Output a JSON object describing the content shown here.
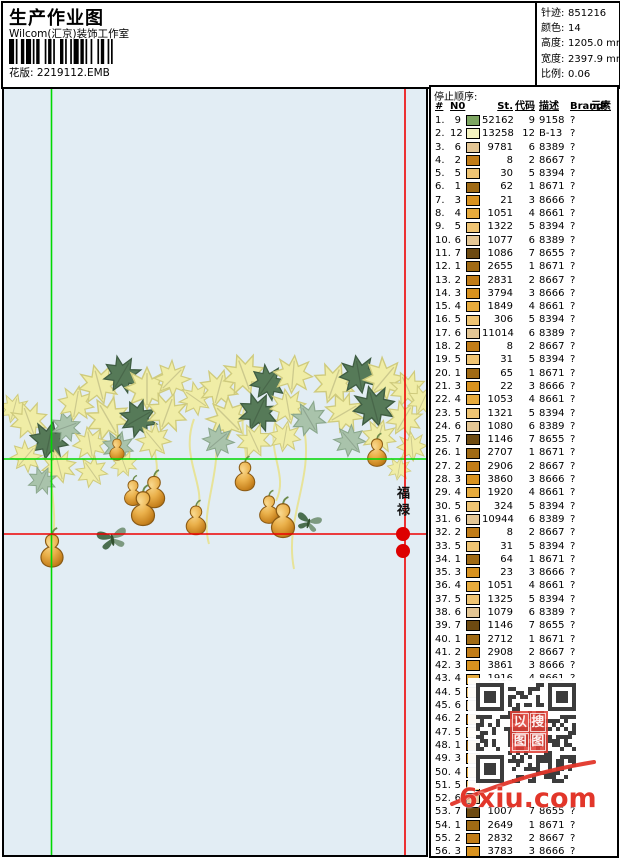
{
  "header": {
    "title": "生产作业图",
    "studio": "Wilcom(汇京)装饰工作室",
    "pattern_label": "花版:",
    "pattern_value": "2219112.EMB",
    "stats": [
      {
        "label": "针迹:",
        "value": "851216"
      },
      {
        "label": "颜色:",
        "value": "14"
      },
      {
        "label": "高度:",
        "value": "1205.0 mm"
      },
      {
        "label": "宽度:",
        "value": "2397.9 mm"
      },
      {
        "label": "比例:",
        "value": "0.06"
      }
    ]
  },
  "design": {
    "motto": "福禄"
  },
  "watermark": {
    "site": "6xiu.com",
    "stamp_chars": [
      "以",
      "搜",
      "图",
      "图"
    ]
  },
  "colors": {
    "canvas_bg": "#e2edf4",
    "crosshair_green": "#00d800",
    "crosshair_red": "#ee0000",
    "marker_red": "#dd0000",
    "watermark_red": "#e2362a",
    "leaf_pale": "#f0eda6",
    "leaf_dark": "#567a58",
    "leaf_sage": "#a9c3ab",
    "gourd_mid": "#e6a53c"
  },
  "thread_colors": {
    "1": "#a06a14",
    "2": "#c17c17",
    "3": "#d8921f",
    "4": "#e7ab3d",
    "5": "#efc473",
    "6": "#e4c694",
    "7": "#6d4a11",
    "9": "#7da561",
    "12": "#f5f3c0"
  },
  "table": {
    "title": "停止顺序:",
    "columns": [
      "#",
      "N0",
      "St.",
      "代码",
      "描述",
      "Brand",
      "元素"
    ],
    "rows": [
      {
        "n": "1.",
        "no": "9",
        "st": "52162",
        "code": "9",
        "desc": "9158",
        "brand": "?"
      },
      {
        "n": "2.",
        "no": "12",
        "st": "13258",
        "code": "12",
        "desc": "B-13",
        "brand": "?"
      },
      {
        "n": "3.",
        "no": "6",
        "st": "9781",
        "code": "6",
        "desc": "8389",
        "brand": "?"
      },
      {
        "n": "4.",
        "no": "2",
        "st": "8",
        "code": "2",
        "desc": "8667",
        "brand": "?"
      },
      {
        "n": "5.",
        "no": "5",
        "st": "30",
        "code": "5",
        "desc": "8394",
        "brand": "?"
      },
      {
        "n": "6.",
        "no": "1",
        "st": "62",
        "code": "1",
        "desc": "8671",
        "brand": "?"
      },
      {
        "n": "7.",
        "no": "3",
        "st": "21",
        "code": "3",
        "desc": "8666",
        "brand": "?"
      },
      {
        "n": "8.",
        "no": "4",
        "st": "1051",
        "code": "4",
        "desc": "8661",
        "brand": "?"
      },
      {
        "n": "9.",
        "no": "5",
        "st": "1322",
        "code": "5",
        "desc": "8394",
        "brand": "?"
      },
      {
        "n": "10.",
        "no": "6",
        "st": "1077",
        "code": "6",
        "desc": "8389",
        "brand": "?"
      },
      {
        "n": "11.",
        "no": "7",
        "st": "1086",
        "code": "7",
        "desc": "8655",
        "brand": "?"
      },
      {
        "n": "12.",
        "no": "1",
        "st": "2655",
        "code": "1",
        "desc": "8671",
        "brand": "?"
      },
      {
        "n": "13.",
        "no": "2",
        "st": "2831",
        "code": "2",
        "desc": "8667",
        "brand": "?"
      },
      {
        "n": "14.",
        "no": "3",
        "st": "3794",
        "code": "3",
        "desc": "8666",
        "brand": "?"
      },
      {
        "n": "15.",
        "no": "4",
        "st": "1849",
        "code": "4",
        "desc": "8661",
        "brand": "?"
      },
      {
        "n": "16.",
        "no": "5",
        "st": "306",
        "code": "5",
        "desc": "8394",
        "brand": "?"
      },
      {
        "n": "17.",
        "no": "6",
        "st": "11014",
        "code": "6",
        "desc": "8389",
        "brand": "?"
      },
      {
        "n": "18.",
        "no": "2",
        "st": "8",
        "code": "2",
        "desc": "8667",
        "brand": "?"
      },
      {
        "n": "19.",
        "no": "5",
        "st": "31",
        "code": "5",
        "desc": "8394",
        "brand": "?"
      },
      {
        "n": "20.",
        "no": "1",
        "st": "65",
        "code": "1",
        "desc": "8671",
        "brand": "?"
      },
      {
        "n": "21.",
        "no": "3",
        "st": "22",
        "code": "3",
        "desc": "8666",
        "brand": "?"
      },
      {
        "n": "22.",
        "no": "4",
        "st": "1053",
        "code": "4",
        "desc": "8661",
        "brand": "?"
      },
      {
        "n": "23.",
        "no": "5",
        "st": "1321",
        "code": "5",
        "desc": "8394",
        "brand": "?"
      },
      {
        "n": "24.",
        "no": "6",
        "st": "1080",
        "code": "6",
        "desc": "8389",
        "brand": "?"
      },
      {
        "n": "25.",
        "no": "7",
        "st": "1146",
        "code": "7",
        "desc": "8655",
        "brand": "?"
      },
      {
        "n": "26.",
        "no": "1",
        "st": "2707",
        "code": "1",
        "desc": "8671",
        "brand": "?"
      },
      {
        "n": "27.",
        "no": "2",
        "st": "2906",
        "code": "2",
        "desc": "8667",
        "brand": "?"
      },
      {
        "n": "28.",
        "no": "3",
        "st": "3860",
        "code": "3",
        "desc": "8666",
        "brand": "?"
      },
      {
        "n": "29.",
        "no": "4",
        "st": "1920",
        "code": "4",
        "desc": "8661",
        "brand": "?"
      },
      {
        "n": "30.",
        "no": "5",
        "st": "324",
        "code": "5",
        "desc": "8394",
        "brand": "?"
      },
      {
        "n": "31.",
        "no": "6",
        "st": "10944",
        "code": "6",
        "desc": "8389",
        "brand": "?"
      },
      {
        "n": "32.",
        "no": "2",
        "st": "8",
        "code": "2",
        "desc": "8667",
        "brand": "?"
      },
      {
        "n": "33.",
        "no": "5",
        "st": "31",
        "code": "5",
        "desc": "8394",
        "brand": "?"
      },
      {
        "n": "34.",
        "no": "1",
        "st": "64",
        "code": "1",
        "desc": "8671",
        "brand": "?"
      },
      {
        "n": "35.",
        "no": "3",
        "st": "23",
        "code": "3",
        "desc": "8666",
        "brand": "?"
      },
      {
        "n": "36.",
        "no": "4",
        "st": "1051",
        "code": "4",
        "desc": "8661",
        "brand": "?"
      },
      {
        "n": "37.",
        "no": "5",
        "st": "1325",
        "code": "5",
        "desc": "8394",
        "brand": "?"
      },
      {
        "n": "38.",
        "no": "6",
        "st": "1079",
        "code": "6",
        "desc": "8389",
        "brand": "?"
      },
      {
        "n": "39.",
        "no": "7",
        "st": "1146",
        "code": "7",
        "desc": "8655",
        "brand": "?"
      },
      {
        "n": "40.",
        "no": "1",
        "st": "2712",
        "code": "1",
        "desc": "8671",
        "brand": "?"
      },
      {
        "n": "41.",
        "no": "2",
        "st": "2908",
        "code": "2",
        "desc": "8667",
        "brand": "?"
      },
      {
        "n": "42.",
        "no": "3",
        "st": "3861",
        "code": "3",
        "desc": "8666",
        "brand": "?"
      },
      {
        "n": "43.",
        "no": "4",
        "st": "1916",
        "code": "4",
        "desc": "8661",
        "brand": "?"
      },
      {
        "n": "44.",
        "no": "5",
        "st": "",
        "code": "",
        "desc": "",
        "brand": ""
      },
      {
        "n": "45.",
        "no": "6",
        "st": "",
        "code": "",
        "desc": "",
        "brand": ""
      },
      {
        "n": "46.",
        "no": "2",
        "st": "",
        "code": "",
        "desc": "",
        "brand": ""
      },
      {
        "n": "47.",
        "no": "5",
        "st": "",
        "code": "",
        "desc": "",
        "brand": ""
      },
      {
        "n": "48.",
        "no": "1",
        "st": "",
        "code": "",
        "desc": "",
        "brand": ""
      },
      {
        "n": "49.",
        "no": "3",
        "st": "",
        "code": "",
        "desc": "",
        "brand": ""
      },
      {
        "n": "50.",
        "no": "4",
        "st": "",
        "code": "",
        "desc": "",
        "brand": ""
      },
      {
        "n": "51.",
        "no": "5",
        "st": "",
        "code": "",
        "desc": "",
        "brand": ""
      },
      {
        "n": "52.",
        "no": "6",
        "st": "",
        "code": "",
        "desc": "",
        "brand": ""
      },
      {
        "n": "53.",
        "no": "7",
        "st": "1007",
        "code": "7",
        "desc": "8655",
        "brand": "?"
      },
      {
        "n": "54.",
        "no": "1",
        "st": "2649",
        "code": "1",
        "desc": "8671",
        "brand": "?"
      },
      {
        "n": "55.",
        "no": "2",
        "st": "2832",
        "code": "2",
        "desc": "8667",
        "brand": "?"
      },
      {
        "n": "56.",
        "no": "3",
        "st": "3783",
        "code": "3",
        "desc": "8666",
        "brand": "?"
      }
    ]
  }
}
